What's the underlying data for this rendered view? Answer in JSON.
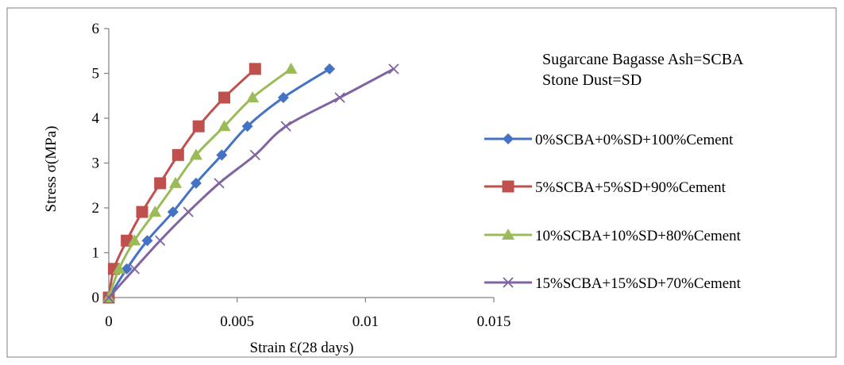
{
  "chart_data": {
    "type": "line",
    "xlabel": "Strain Ɛ(28 days)",
    "ylabel": "Stress σ(MPa)",
    "xlim": [
      0,
      0.015
    ],
    "ylim": [
      0,
      6
    ],
    "x_ticks": [
      "0",
      "0.005",
      "0.01",
      "0.015"
    ],
    "y_ticks": [
      "0",
      "1",
      "2",
      "3",
      "4",
      "5",
      "6"
    ],
    "grid": false,
    "legend_position": "right",
    "annotations": [
      "Sugarcane Bagasse Ash=SCBA",
      "Stone Dust=SD"
    ],
    "series": [
      {
        "name": "0%SCBA+0%SD+100%Cement",
        "color": "#4472c4",
        "marker": "diamond",
        "x": [
          0,
          0.0007,
          0.0015,
          0.0025,
          0.0034,
          0.0044,
          0.0054,
          0.0068,
          0.0086
        ],
        "y": [
          0,
          0.64,
          1.27,
          1.91,
          2.55,
          3.18,
          3.82,
          4.46,
          5.1
        ]
      },
      {
        "name": "5%SCBA+5%SD+90%Cement",
        "color": "#c0504d",
        "marker": "square",
        "x": [
          0,
          0.0002,
          0.0007,
          0.0013,
          0.002,
          0.0027,
          0.0035,
          0.0045,
          0.0057
        ],
        "y": [
          0,
          0.64,
          1.27,
          1.91,
          2.55,
          3.18,
          3.82,
          4.46,
          5.1
        ]
      },
      {
        "name": "10%SCBA+10%SD+80%Cement",
        "color": "#9bbb59",
        "marker": "triangle",
        "x": [
          0,
          0.0004,
          0.001,
          0.0018,
          0.0026,
          0.0034,
          0.0045,
          0.0056,
          0.0071
        ],
        "y": [
          0,
          0.64,
          1.27,
          1.91,
          2.55,
          3.18,
          3.82,
          4.46,
          5.1
        ]
      },
      {
        "name": "15%SCBA+15%SD+70%Cement",
        "color": "#8064a2",
        "marker": "x",
        "x": [
          0,
          0.001,
          0.002,
          0.0031,
          0.0043,
          0.0057,
          0.0069,
          0.009,
          0.0111
        ],
        "y": [
          0,
          0.64,
          1.27,
          1.91,
          2.55,
          3.18,
          3.82,
          4.46,
          5.1
        ]
      }
    ]
  }
}
